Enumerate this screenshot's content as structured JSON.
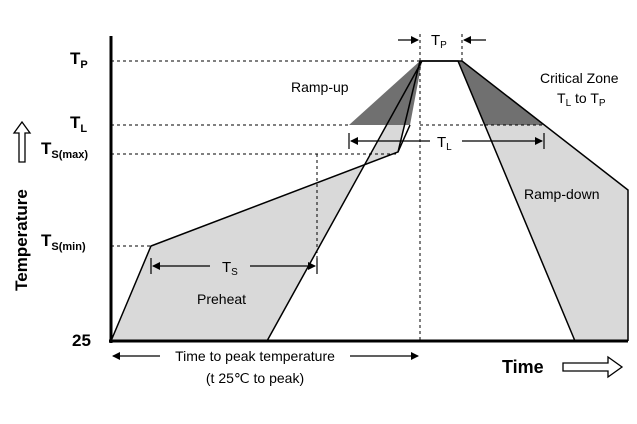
{
  "y_labels": {
    "tp": {
      "main": "T",
      "sub": "P"
    },
    "tl": {
      "main": "T",
      "sub": "L"
    },
    "ts_max": {
      "main": "T",
      "sub": "S(max)"
    },
    "ts_min": {
      "main": "T",
      "sub": "S(min)"
    },
    "base": "25"
  },
  "axis": {
    "y_title": "Temperature",
    "x_title": "Time"
  },
  "zones": {
    "ramp_up": "Ramp-up",
    "ramp_down": "Ramp-down",
    "preheat": "Preheat",
    "critical_line1": "Critical Zone",
    "critical_line2_main": "T",
    "critical_line2_sub": "L",
    "critical_line2_mid": " to T",
    "critical_line2_sub2": "P"
  },
  "dimensions": {
    "tp": {
      "main": "T",
      "sub": "P"
    },
    "tl": {
      "main": "T",
      "sub": "L"
    },
    "ts": {
      "main": "T",
      "sub": "S"
    },
    "time_to_peak_line1": "Time to peak temperature",
    "time_to_peak_line2": "(t 25℃ to peak)"
  },
  "colors": {
    "light_fill": "#d9d9d9",
    "dark_fill": "#707070",
    "line": "#000000"
  }
}
